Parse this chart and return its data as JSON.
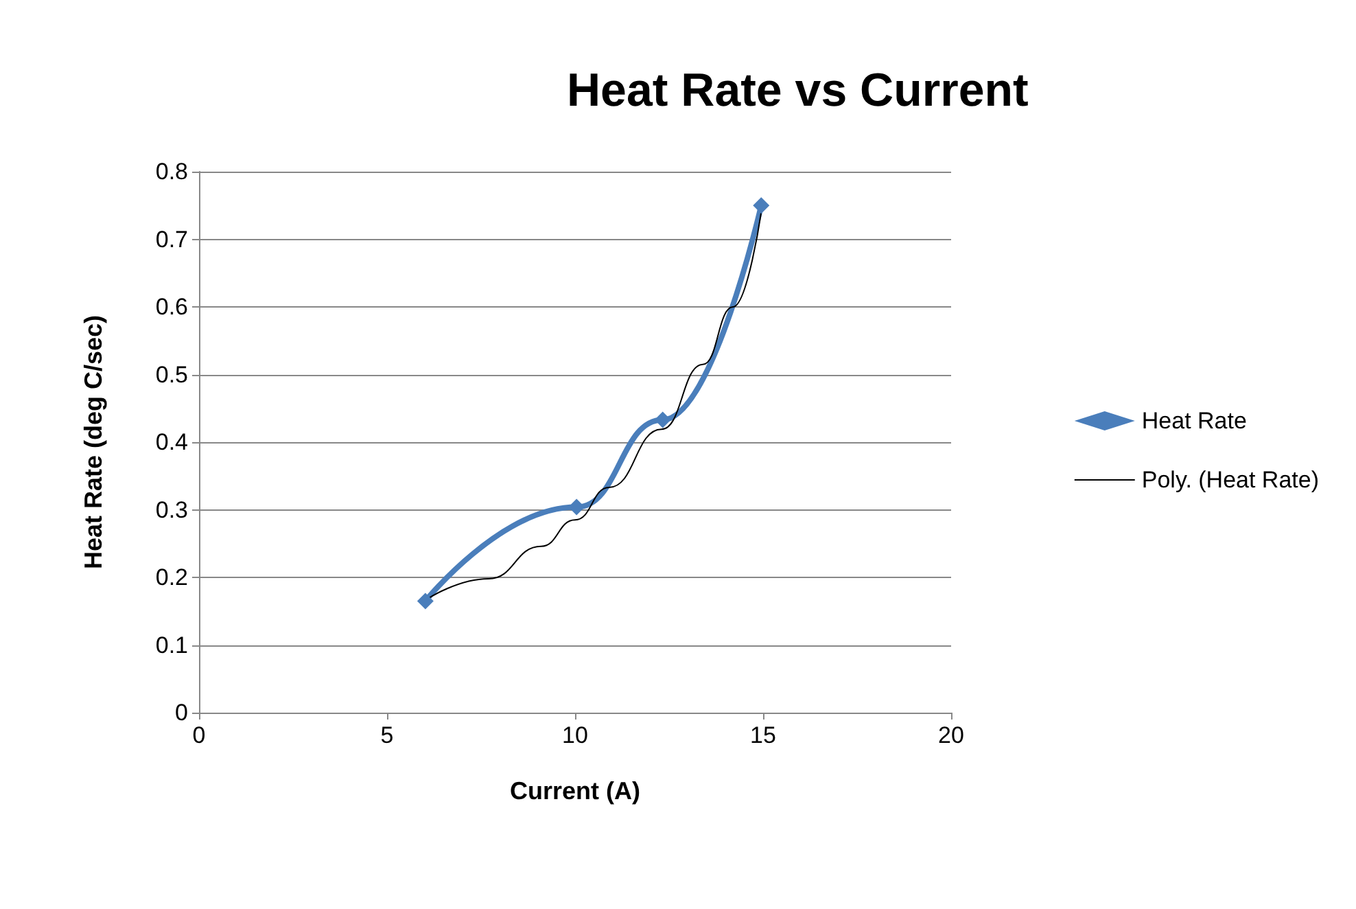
{
  "chart_data": {
    "type": "line",
    "title": "Heat Rate vs Current",
    "xlabel": "Current (A)",
    "ylabel": "Heat Rate (deg C/sec)",
    "xlim": [
      0,
      20
    ],
    "xticks": [
      0,
      5,
      10,
      15,
      20
    ],
    "ylim": [
      0,
      0.8
    ],
    "yticks": [
      0,
      0.1,
      0.2,
      0.3,
      0.4,
      0.5,
      0.6,
      0.7,
      0.8
    ],
    "grid": "y",
    "legend": "right",
    "series": [
      {
        "name": "Heat Rate",
        "color": "#4a7ebb",
        "marker": "diamond",
        "x": [
          6.02,
          10.04,
          12.33,
          14.95
        ],
        "values": [
          0.165,
          0.304,
          0.433,
          0.75
        ]
      },
      {
        "name": "Poly. (Heat Rate)",
        "color": "#000000",
        "marker": "none",
        "x": [
          6.1,
          7.7,
          9.1,
          10.0,
          10.9,
          12.3,
          13.4,
          14.2,
          14.95
        ],
        "values": [
          0.169,
          0.198,
          0.246,
          0.285,
          0.333,
          0.419,
          0.515,
          0.6,
          0.74
        ]
      }
    ]
  }
}
